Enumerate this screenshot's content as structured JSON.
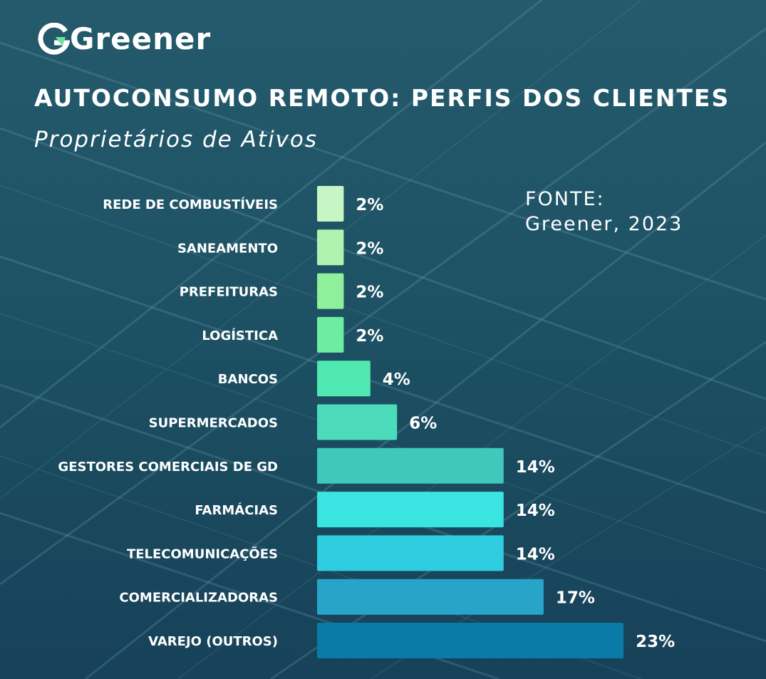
{
  "brand": {
    "name": "Greener"
  },
  "chart_data": {
    "type": "bar",
    "orientation": "horizontal",
    "title": "AUTOCONSUMO REMOTO: PERFIS DOS CLIENTES",
    "subtitle": "Proprietários de Ativos",
    "source_label": "FONTE:",
    "source_value": "Greener, 2023",
    "categories": [
      "REDE DE COMBUSTÍVEIS",
      "SANEAMENTO",
      "PREFEITURAS",
      "LOGÍSTICA",
      "BANCOS",
      "SUPERMERCADOS",
      "GESTORES COMERCIAIS DE GD",
      "FARMÁCIAS",
      "TELECOMUNICAÇÕES",
      "COMERCIALIZADORAS",
      "VAREJO (OUTROS)"
    ],
    "values": [
      2,
      2,
      2,
      2,
      4,
      6,
      14,
      14,
      14,
      17,
      23
    ],
    "value_labels": [
      "2%",
      "2%",
      "2%",
      "2%",
      "4%",
      "6%",
      "14%",
      "14%",
      "14%",
      "17%",
      "23%"
    ],
    "unit": "%",
    "bar_colors": [
      "#c8f5c4",
      "#b2f2b0",
      "#8ef09a",
      "#6eeca0",
      "#4ee8b0",
      "#4cdcbc",
      "#40c8bc",
      "#3ae4e0",
      "#30cce0",
      "#28a4c8",
      "#0a7aa6"
    ],
    "grid": false,
    "legend": "none"
  }
}
